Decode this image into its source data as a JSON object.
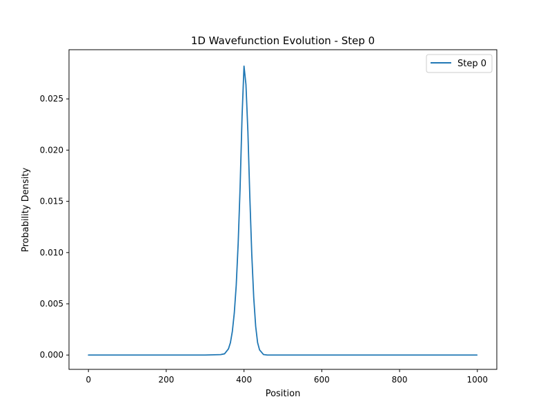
{
  "chart_data": {
    "type": "line",
    "title": "1D Wavefunction Evolution - Step 0",
    "xlabel": "Position",
    "ylabel": "Probability Density",
    "xlim": [
      -50,
      1050
    ],
    "ylim": [
      -0.0014,
      0.0298
    ],
    "xticks": [
      0,
      200,
      400,
      600,
      800,
      1000
    ],
    "xtick_labels": [
      "0",
      "200",
      "400",
      "600",
      "800",
      "1000"
    ],
    "yticks": [
      0.0,
      0.005,
      0.01,
      0.015,
      0.02,
      0.025
    ],
    "ytick_labels": [
      "0.000",
      "0.005",
      "0.010",
      "0.015",
      "0.020",
      "0.025"
    ],
    "grid": false,
    "legend_position": "top-right",
    "series": [
      {
        "name": "Step 0",
        "color": "#1f77b4",
        "x": [
          0,
          100,
          200,
          300,
          340,
          350,
          360,
          365,
          370,
          375,
          380,
          385,
          390,
          395,
          400,
          405,
          410,
          415,
          420,
          425,
          430,
          435,
          440,
          450,
          460,
          500,
          600,
          700,
          800,
          900,
          999
        ],
        "y": [
          0,
          0,
          0,
          0,
          4e-05,
          0.00012,
          0.0006,
          0.0012,
          0.0023,
          0.0041,
          0.0068,
          0.0109,
          0.0164,
          0.0233,
          0.0282,
          0.0264,
          0.0218,
          0.0154,
          0.0098,
          0.0056,
          0.0028,
          0.0012,
          0.0005,
          5e-05,
          0.0,
          0,
          0,
          0,
          0,
          0,
          0
        ]
      }
    ]
  }
}
